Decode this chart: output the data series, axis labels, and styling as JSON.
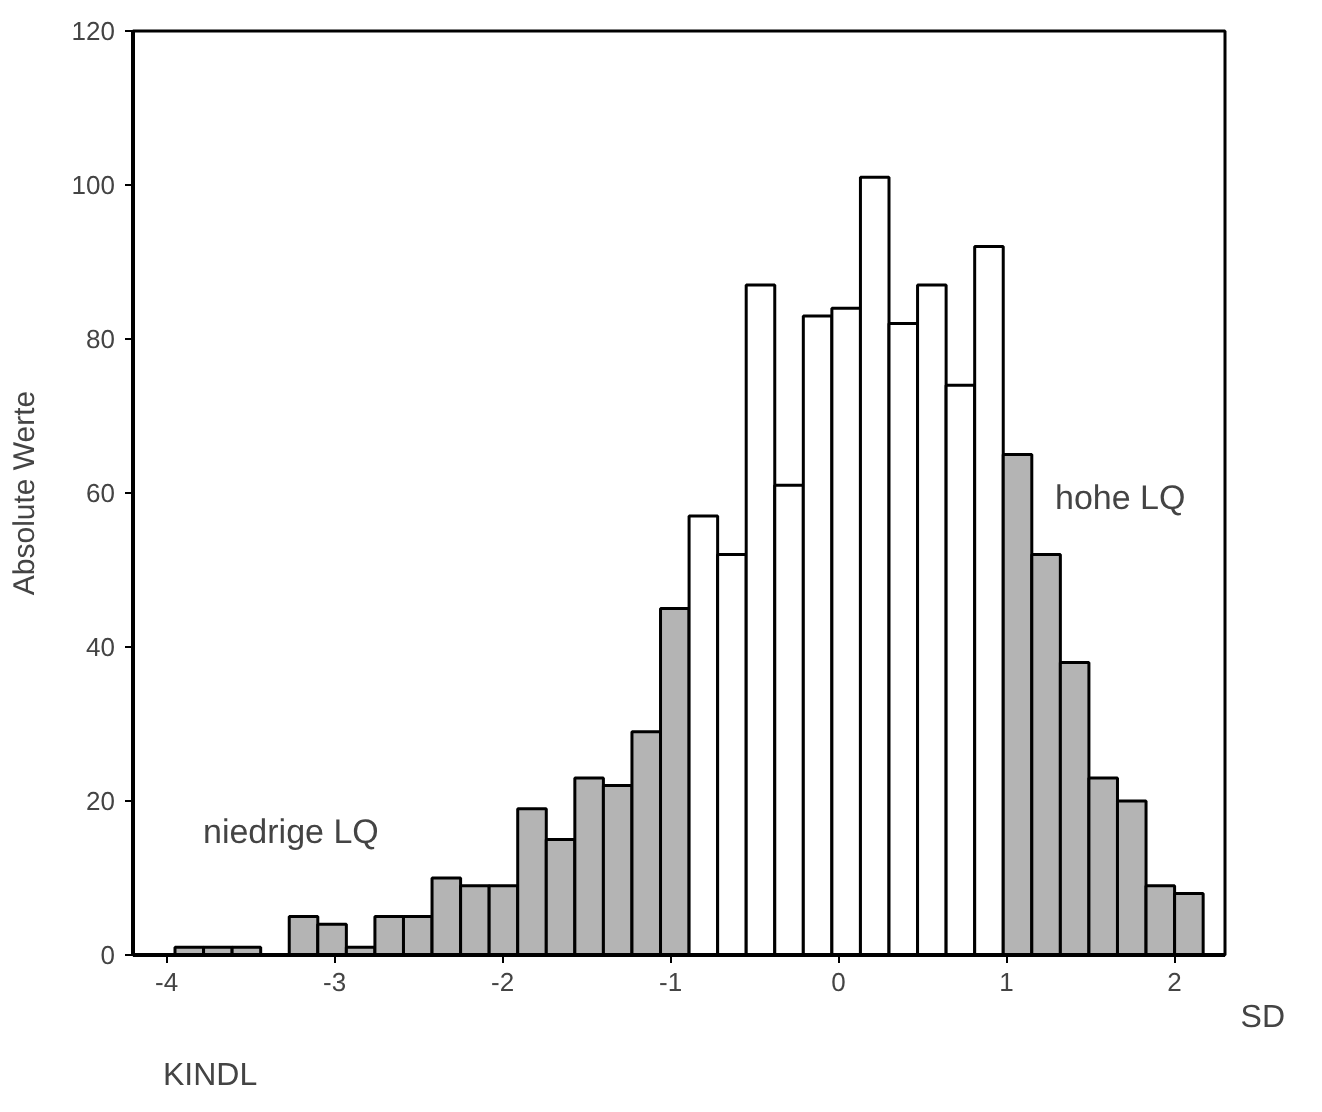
{
  "chart_data": {
    "type": "histogram",
    "xlabel": "SD",
    "ylabel": "Absolute Werte",
    "bins": [
      -3.95,
      -3.78,
      -3.61,
      -3.44,
      -3.27,
      -3.1,
      -2.93,
      -2.76,
      -2.59,
      -2.42,
      -2.25,
      -2.08,
      -1.91,
      -1.74,
      -1.57,
      -1.4,
      -1.23,
      -1.06,
      -0.89,
      -0.72,
      -0.55,
      -0.38,
      -0.21,
      -0.04,
      0.13,
      0.3,
      0.47,
      0.64,
      0.81,
      0.98,
      1.15,
      1.32,
      1.49,
      1.66,
      1.83,
      2.0,
      2.17
    ],
    "values": [
      1,
      1,
      1,
      0,
      5,
      4,
      1,
      5,
      5,
      10,
      9,
      9,
      19,
      15,
      23,
      22,
      29,
      45,
      57,
      52,
      87,
      61,
      83,
      84,
      101,
      82,
      87,
      74,
      92,
      65,
      52,
      38,
      23,
      20,
      9,
      8
    ],
    "colors": [
      "#b4b4b4",
      "#b4b4b4",
      "#b4b4b4",
      "#707070",
      "#b4b4b4",
      "#b4b4b4",
      "#b4b4b4",
      "#b4b4b4",
      "#b4b4b4",
      "#b4b4b4",
      "#b4b4b4",
      "#b4b4b4",
      "#b4b4b4",
      "#b4b4b4",
      "#b4b4b4",
      "#b4b4b4",
      "#b4b4b4",
      "#b4b4b4",
      "#ffffff",
      "#ffffff",
      "#ffffff",
      "#ffffff",
      "#ffffff",
      "#ffffff",
      "#ffffff",
      "#ffffff",
      "#ffffff",
      "#ffffff",
      "#ffffff",
      "#b4b4b4",
      "#b4b4b4",
      "#b4b4b4",
      "#b4b4b4",
      "#b4b4b4",
      "#b4b4b4",
      "#b4b4b4"
    ],
    "xlim": [
      -4.2,
      2.3
    ],
    "xticks": [
      -4,
      -3,
      -2,
      -1,
      0,
      1,
      2
    ],
    "ylim": [
      0,
      120
    ],
    "yticks": [
      0,
      20,
      40,
      60,
      80,
      100,
      120
    ],
    "grid": false,
    "annotations": [
      "niedrige LQ",
      "hohe LQ",
      "KINDL"
    ]
  }
}
